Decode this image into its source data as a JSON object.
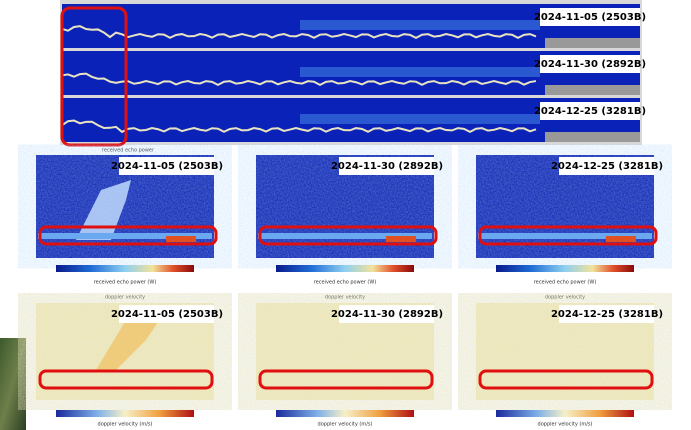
{
  "top_strip": {
    "rows": [
      {
        "label": "2024-11-05 (2503B)"
      },
      {
        "label": "2024-11-30 (2892B)"
      },
      {
        "label": "2024-12-25 (3281B)"
      }
    ],
    "caption": "received echo power"
  },
  "panels": [
    {
      "power_label": "2024-11-05 (2503B)",
      "power_colorbar": "received echo power (W)",
      "doppler_title": "doppler velocity",
      "doppler_label": "2024-11-05 (2503B)",
      "doppler_colorbar": "doppler velocity (m/s)"
    },
    {
      "power_label": "2024-11-30 (2892B)",
      "power_colorbar": "received echo power (W)",
      "doppler_title": "doppler velocity",
      "doppler_label": "2024-11-30 (2892B)",
      "doppler_colorbar": "doppler velocity (m/s)"
    },
    {
      "power_label": "2024-12-25 (3281B)",
      "power_colorbar": "received echo power (W)",
      "doppler_title": "doppler velocity",
      "doppler_label": "2024-12-25 (3281B)",
      "doppler_colorbar": "doppler velocity (m/s)"
    }
  ]
}
